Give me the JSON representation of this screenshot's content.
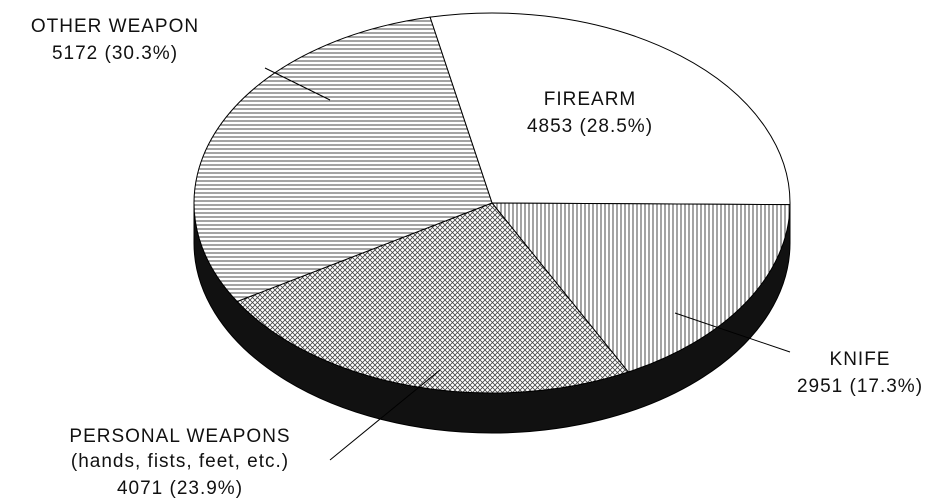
{
  "chart_data": {
    "type": "pie",
    "categories": [
      "FIREARM",
      "KNIFE",
      "PERSONAL WEAPONS",
      "OTHER WEAPON"
    ],
    "category_sublabels": [
      null,
      null,
      "(hands, fists, feet, etc.)",
      null
    ],
    "values": [
      4853,
      2951,
      4071,
      5172
    ],
    "value_labels": [
      "4853 (28.5%)",
      "2951 (17.3%)",
      "4071 (23.9%)",
      "5172 (30.3%)"
    ],
    "fills": [
      "white",
      "vertical",
      "crosshatch",
      "horizontal"
    ],
    "side_color": "#111111"
  }
}
